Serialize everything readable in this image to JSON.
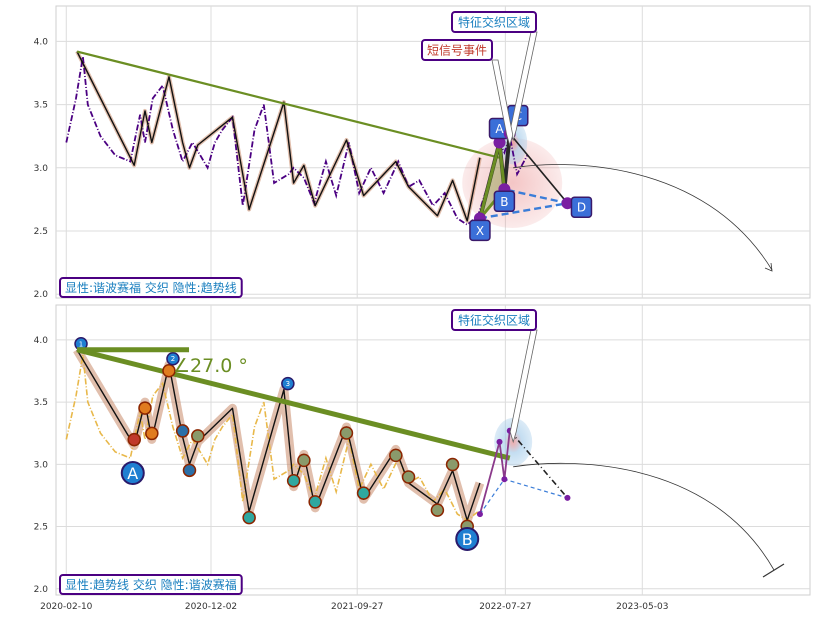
{
  "chart_data": [
    {
      "type": "line",
      "panel": "top",
      "ylim": [
        1.97,
        4.28
      ],
      "yticks": [
        "2.0",
        "2.5",
        "3.0",
        "3.5",
        "4.0"
      ],
      "x_range": [
        "2020-01-20",
        "2024-04-10"
      ],
      "grid": true,
      "series": [
        {
          "style": "dash-dot, dark purple",
          "x": [
            "2020-02-10",
            "2020-03-01",
            "2020-03-15",
            "2020-03-25",
            "2020-04-20",
            "2020-05-20",
            "2020-06-20",
            "2020-07-10",
            "2020-07-20",
            "2020-08-05",
            "2020-08-25",
            "2020-09-15",
            "2020-10-05",
            "2020-10-25",
            "2020-11-10",
            "2020-11-25",
            "2020-12-10",
            "2020-12-25",
            "2021-01-15",
            "2021-02-05",
            "2021-03-01",
            "2021-03-20",
            "2021-04-10",
            "2021-05-10",
            "2021-05-20",
            "2021-06-10",
            "2021-07-01",
            "2021-07-25",
            "2021-08-15",
            "2021-09-10",
            "2021-10-01",
            "2021-10-25",
            "2021-11-20",
            "2021-12-20",
            "2022-01-10",
            "2022-02-01",
            "2022-03-01",
            "2022-03-25",
            "2022-04-20",
            "2022-05-10",
            "2022-06-01",
            "2022-06-20",
            "2022-07-05",
            "2022-07-15",
            "2022-07-25",
            "2022-08-05",
            "2022-08-20",
            "2022-09-10"
          ],
          "y": [
            3.2,
            3.55,
            3.88,
            3.5,
            3.25,
            3.1,
            3.05,
            3.42,
            3.2,
            3.55,
            3.65,
            3.3,
            3.05,
            3.2,
            3.1,
            3.0,
            3.2,
            3.3,
            3.4,
            2.7,
            3.3,
            3.5,
            2.88,
            2.95,
            3.0,
            2.92,
            2.72,
            3.05,
            2.78,
            3.2,
            2.8,
            3.0,
            2.8,
            3.05,
            2.85,
            2.9,
            2.7,
            2.8,
            2.6,
            2.55,
            2.62,
            2.85,
            3.05,
            3.2,
            3.12,
            3.25,
            2.95,
            3.1
          ]
        }
      ],
      "wave_points": {
        "x": [
          "2020-03-03",
          "2020-06-28",
          "2020-07-20",
          "2020-08-03",
          "2020-09-07",
          "2020-10-05",
          "2020-10-19",
          "2020-11-05",
          "2021-01-15",
          "2021-02-18",
          "2021-04-30",
          "2021-05-20",
          "2021-06-10",
          "2021-07-03",
          "2021-09-05",
          "2021-10-10",
          "2021-12-15",
          "2022-01-10",
          "2022-03-10",
          "2022-04-10",
          "2022-05-10",
          "2022-06-05"
        ],
        "y": [
          3.92,
          3.02,
          3.45,
          3.2,
          3.72,
          3.2,
          3.0,
          3.18,
          3.4,
          2.67,
          3.52,
          2.88,
          3.02,
          2.7,
          3.22,
          2.78,
          3.05,
          2.85,
          2.62,
          2.9,
          2.58,
          3.08
        ]
      },
      "trend_line": {
        "x": [
          "2020-03-03",
          "2022-07-15"
        ],
        "y": [
          3.92,
          3.08
        ]
      },
      "pattern": {
        "points": [
          {
            "label": "X",
            "x": "2022-06-05",
            "y": 2.6
          },
          {
            "label": "A",
            "x": "2022-07-15",
            "y": 3.2
          },
          {
            "label": "B",
            "x": "2022-07-25",
            "y": 2.83
          },
          {
            "label": "C",
            "x": "2022-08-05",
            "y": 3.27
          },
          {
            "label": "D",
            "x": "2022-12-01",
            "y": 2.72
          }
        ]
      },
      "annotations": [
        {
          "text": "特征交织区域",
          "color": "#1a7fbf"
        },
        {
          "text": "短信号事件",
          "color": "#c0392b"
        }
      ],
      "legend": "显性:谐波赛福 交织 隐性:趋势线",
      "legend_placement": "bottom-left"
    },
    {
      "type": "line",
      "panel": "bottom",
      "ylim": [
        1.95,
        4.28
      ],
      "yticks": [
        "2.0",
        "2.5",
        "3.0",
        "3.5",
        "4.0"
      ],
      "x_range": [
        "2020-01-20",
        "2024-04-10"
      ],
      "xticks": [
        "2020-02-10",
        "2020-12-02",
        "2021-09-27",
        "2022-07-27",
        "2023-05-03"
      ],
      "grid": true,
      "series": [
        {
          "style": "dash-dot, golden",
          "x": [
            "2020-02-10",
            "2020-03-01",
            "2020-03-15",
            "2020-03-25",
            "2020-04-20",
            "2020-05-20",
            "2020-06-20",
            "2020-07-10",
            "2020-07-20",
            "2020-08-05",
            "2020-08-25",
            "2020-09-15",
            "2020-10-05",
            "2020-10-25",
            "2020-11-10",
            "2020-11-25",
            "2020-12-10",
            "2020-12-25",
            "2021-01-15",
            "2021-02-05",
            "2021-03-01",
            "2021-03-20",
            "2021-04-10",
            "2021-05-10",
            "2021-05-20",
            "2021-06-10",
            "2021-07-01",
            "2021-07-25",
            "2021-08-15",
            "2021-09-10",
            "2021-10-01",
            "2021-10-25",
            "2021-11-20",
            "2021-12-20",
            "2022-01-10",
            "2022-02-01",
            "2022-03-01",
            "2022-03-25",
            "2022-04-20",
            "2022-05-10",
            "2022-06-01"
          ],
          "y": [
            3.2,
            3.55,
            3.88,
            3.5,
            3.25,
            3.1,
            3.05,
            3.42,
            3.2,
            3.55,
            3.65,
            3.3,
            3.05,
            3.2,
            3.1,
            3.0,
            3.2,
            3.3,
            3.4,
            2.7,
            3.3,
            3.5,
            2.88,
            2.95,
            3.0,
            2.92,
            2.72,
            3.05,
            2.78,
            3.2,
            2.8,
            3.0,
            2.8,
            3.05,
            2.85,
            2.9,
            2.7,
            2.8,
            2.6,
            2.55,
            2.62
          ]
        }
      ],
      "wave_points": {
        "x": [
          "2020-03-03",
          "2020-06-28",
          "2020-07-20",
          "2020-08-03",
          "2020-09-07",
          "2020-10-05",
          "2020-10-19",
          "2020-11-05",
          "2021-01-15",
          "2021-02-18",
          "2021-04-30",
          "2021-05-20",
          "2021-06-10",
          "2021-07-03",
          "2021-09-05",
          "2021-10-10",
          "2021-12-15",
          "2022-01-10",
          "2022-03-10",
          "2022-04-10",
          "2022-05-10",
          "2022-06-05"
        ],
        "y": [
          3.92,
          3.15,
          3.5,
          3.2,
          3.8,
          3.22,
          3.0,
          3.18,
          3.45,
          2.62,
          3.6,
          2.82,
          3.08,
          2.65,
          3.3,
          2.72,
          3.12,
          2.85,
          2.68,
          2.95,
          2.55,
          2.85
        ]
      },
      "numbered_markers": [
        "1",
        "2",
        "3"
      ],
      "big_labels": [
        {
          "text": "A",
          "x": "2020-06-25",
          "y": 2.93
        },
        {
          "text": "B",
          "x": "2022-05-10",
          "y": 2.4
        }
      ],
      "trend_line": {
        "x": [
          "2020-03-03",
          "2022-08-05"
        ],
        "y": [
          3.92,
          3.05
        ]
      },
      "angle_label": "∠27.0 °",
      "pattern": {
        "points": [
          {
            "x": "2022-06-05",
            "y": 2.6
          },
          {
            "x": "2022-07-15",
            "y": 3.18
          },
          {
            "x": "2022-07-25",
            "y": 2.88
          },
          {
            "x": "2022-08-05",
            "y": 3.27
          },
          {
            "x": "2022-12-01",
            "y": 2.73
          }
        ]
      },
      "annotations": [
        {
          "text": "特征交织区域",
          "color": "#1a7fbf"
        }
      ],
      "legend": "显性:趋势线 交织 隐性:谐波赛福",
      "legend_placement": "bottom-left"
    }
  ]
}
